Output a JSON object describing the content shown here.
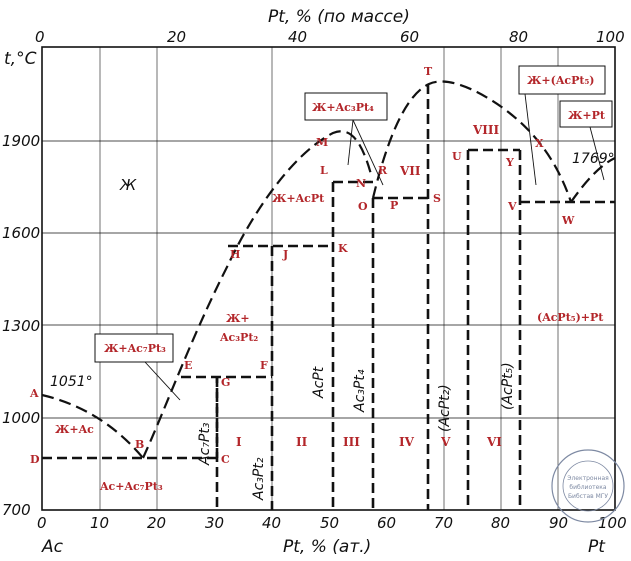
{
  "titles": {
    "top": "Pt, % (по массе)",
    "bottom": "Pt, % (ат.)",
    "y_axis": "t,°C",
    "left_element": "Ac",
    "right_element": "Pt"
  },
  "top_ticks": [
    "0",
    "20",
    "40",
    "60",
    "80",
    "100"
  ],
  "bottom_ticks": [
    "0",
    "10",
    "20",
    "30",
    "40",
    "50",
    "60",
    "70",
    "80",
    "90",
    "100"
  ],
  "y_ticks": [
    "700",
    "1000",
    "1300",
    "1600",
    "1900"
  ],
  "temps": {
    "left_melt": "1051°",
    "right_melt": "1769°"
  },
  "points": {
    "A": "A",
    "B": "B",
    "C": "C",
    "D": "D",
    "E": "E",
    "F": "F",
    "G": "G",
    "H": "H",
    "J": "J",
    "K": "K",
    "L": "L",
    "M": "M",
    "N": "N",
    "O": "O",
    "P": "P",
    "R": "R",
    "S": "S",
    "T": "T",
    "U": "U",
    "V": "V",
    "W": "W",
    "X": "X",
    "Y": "Y"
  },
  "regions": {
    "liquid": "Ж",
    "liq_ac": "Ж+Ac",
    "ac_ac7pt3": "Ac+Ac₇Pt₃",
    "liq_ac3pt2": [
      "Ж+",
      "Ac₃Pt₂"
    ],
    "liq_acpt": "Ж+AcPt",
    "acpt5_pt": "(AcPt₅)+Pt",
    "I": "I",
    "II": "II",
    "III": "III",
    "IV": "IV",
    "V": "V",
    "VI": "VI",
    "VII": "VII",
    "VIII": "VIII"
  },
  "callouts": {
    "liq_ac7pt3": "Ж+Ac₇Pt₃",
    "liq_ac3pt4": "Ж+Ac₃Pt₄",
    "liq_acpt5": "Ж+(AcPt₅)",
    "liq_pt": "Ж+Pt"
  },
  "phases": {
    "ac7pt3": "Ac₇Pt₃",
    "ac3pt2": "Ac₃Pt₂",
    "acpt": "AcPt",
    "ac3pt4": "Ac₃Pt₄",
    "acpt2": "(AcPt₂)",
    "acpt5": "(AcPt₅)"
  },
  "stamp": [
    "Электронная",
    "библиотека",
    "Бибcтaв МГУ"
  ]
}
